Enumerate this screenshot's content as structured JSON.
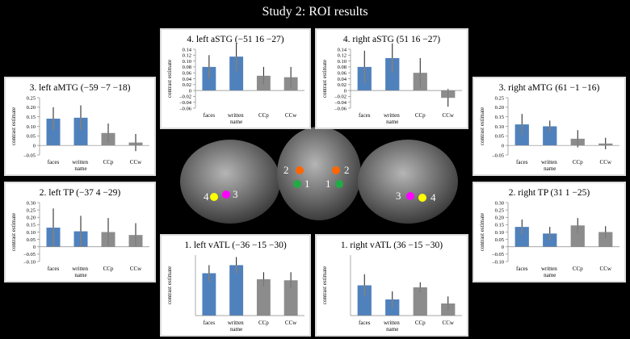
{
  "title": "Study 2: ROI results",
  "brain_labels": [
    "4",
    "3",
    "2",
    "2",
    "1",
    "1",
    "3",
    "4"
  ],
  "chart_data": [
    {
      "type": "bar",
      "title": "4. left aSTG (−51 16 −27)",
      "y_label": "contrast estimate",
      "categories": [
        "faces",
        "written name",
        "CCp",
        "CCw"
      ],
      "values": [
        0.08,
        0.115,
        0.05,
        0.045
      ],
      "errors": [
        0.04,
        0.05,
        0.03,
        0.035
      ],
      "colors": [
        "#4f81bd",
        "#4f81bd",
        "#8c8c8c",
        "#8c8c8c"
      ],
      "ylim": [
        -0.06,
        0.14
      ],
      "yticks": [
        {
          "value": 0.14,
          "label": "0.14"
        },
        {
          "value": 0.12,
          "label": "0.12"
        },
        {
          "value": 0.1,
          "label": "0.10"
        },
        {
          "value": 0.08,
          "label": "0.08"
        },
        {
          "value": 0.06,
          "label": "0.06"
        },
        {
          "value": 0.04,
          "label": "0.04"
        },
        {
          "value": 0.02,
          "label": "0.02"
        },
        0,
        {
          "value": -0.02,
          "label": "–0.02"
        },
        {
          "value": -0.04,
          "label": "–0.04"
        },
        {
          "value": -0.06,
          "label": "–0.06"
        }
      ]
    },
    {
      "type": "bar",
      "title": "4. right aSTG (51 16 −27)",
      "y_label": "contrast estimate",
      "categories": [
        "faces",
        "written name",
        "CCp",
        "CCw"
      ],
      "values": [
        0.08,
        0.11,
        0.06,
        -0.025
      ],
      "errors": [
        0.055,
        0.05,
        0.05,
        0.03
      ],
      "colors": [
        "#4f81bd",
        "#4f81bd",
        "#8c8c8c",
        "#8c8c8c"
      ],
      "ylim": [
        -0.06,
        0.14
      ],
      "yticks": [
        {
          "value": 0.14,
          "label": "0.14"
        },
        {
          "value": 0.12,
          "label": "0.12"
        },
        {
          "value": 0.1,
          "label": "0.10"
        },
        {
          "value": 0.08,
          "label": "0.08"
        },
        {
          "value": 0.06,
          "label": "0.06"
        },
        {
          "value": 0.04,
          "label": "0.04"
        },
        {
          "value": 0.02,
          "label": "0.02"
        },
        0,
        {
          "value": -0.02,
          "label": "–0.02"
        },
        {
          "value": -0.04,
          "label": "–0.04"
        },
        {
          "value": -0.06,
          "label": "–0.06"
        }
      ]
    },
    {
      "type": "bar",
      "title": "3. left aMTG (−59 −7 −18)",
      "y_label": "contrast estimate",
      "categories": [
        "faces",
        "written name",
        "CCp",
        "CCw"
      ],
      "values": [
        0.14,
        0.145,
        0.065,
        0.015
      ],
      "errors": [
        0.06,
        0.065,
        0.05,
        0.045
      ],
      "colors": [
        "#4f81bd",
        "#4f81bd",
        "#8c8c8c",
        "#8c8c8c"
      ],
      "ylim": [
        -0.05,
        0.25
      ],
      "yticks": [
        0.25,
        {
          "value": 0.2,
          "label": "0.20"
        },
        0.15,
        {
          "value": 0.1,
          "label": "0.10"
        },
        0.05,
        0,
        {
          "value": -0.05,
          "label": "–0.05"
        }
      ]
    },
    {
      "type": "bar",
      "title": "3. right aMTG (61 −1 −16)",
      "y_label": "contrast estimate",
      "categories": [
        "faces",
        "written name",
        "CCp",
        "CCw"
      ],
      "values": [
        0.11,
        0.1,
        0.035,
        0.01
      ],
      "errors": [
        0.055,
        0.03,
        0.045,
        0.03
      ],
      "colors": [
        "#4f81bd",
        "#4f81bd",
        "#8c8c8c",
        "#8c8c8c"
      ],
      "ylim": [
        -0.05,
        0.25
      ],
      "yticks": [
        0.25,
        {
          "value": 0.2,
          "label": "0.20"
        },
        0.15,
        {
          "value": 0.1,
          "label": "0.10"
        },
        0.05,
        0,
        {
          "value": -0.05,
          "label": "–0.05"
        }
      ]
    },
    {
      "type": "bar",
      "title": "2. left TP (−37 4 −29)",
      "y_label": "contrast estimate",
      "categories": [
        "faces",
        "written name",
        "CCp",
        "CCw"
      ],
      "values": [
        0.13,
        0.105,
        0.1,
        0.08
      ],
      "errors": [
        0.13,
        0.105,
        0.095,
        0.08
      ],
      "colors": [
        "#4f81bd",
        "#4f81bd",
        "#8c8c8c",
        "#8c8c8c"
      ],
      "ylim": [
        -0.1,
        0.3
      ],
      "yticks": [
        {
          "value": 0.3,
          "label": "0.30"
        },
        0.25,
        {
          "value": 0.2,
          "label": "0.20"
        },
        0.15,
        {
          "value": 0.1,
          "label": "0.10"
        },
        0.05,
        0,
        {
          "value": -0.05,
          "label": "–0.05"
        },
        {
          "value": -0.1,
          "label": "–0.10"
        }
      ]
    },
    {
      "type": "bar",
      "title": "2. right TP (31 1 −25)",
      "y_label": "contrast estimate",
      "categories": [
        "faces",
        "written name",
        "CCp",
        "CCw"
      ],
      "values": [
        0.135,
        0.09,
        0.145,
        0.1
      ],
      "errors": [
        0.05,
        0.045,
        0.05,
        0.04
      ],
      "colors": [
        "#4f81bd",
        "#4f81bd",
        "#8c8c8c",
        "#8c8c8c"
      ],
      "ylim": [
        -0.1,
        0.3
      ],
      "yticks": [
        {
          "value": 0.3,
          "label": "0.30"
        },
        0.25,
        {
          "value": 0.2,
          "label": "0.20"
        },
        0.15,
        {
          "value": 0.1,
          "label": "0.10"
        },
        0.05,
        0,
        {
          "value": -0.05,
          "label": "–0.05"
        },
        {
          "value": -0.1,
          "label": "–0.10"
        }
      ]
    },
    {
      "type": "bar",
      "title": "1. left vATL (−36 −15 −30)",
      "y_label": "contrast estimate",
      "categories": [
        "faces",
        "written name",
        "CCp",
        "CCw"
      ],
      "values": [
        0.21,
        0.25,
        0.18,
        0.175
      ],
      "errors": [
        0.04,
        0.04,
        0.035,
        0.04
      ],
      "colors": [
        "#4f81bd",
        "#4f81bd",
        "#8c8c8c",
        "#8c8c8c"
      ],
      "ylim": [
        0,
        0.3
      ]
    },
    {
      "type": "bar",
      "title": "1. right vATL (36 −15 −30)",
      "y_label": "contrast estimate",
      "categories": [
        "faces",
        "written name",
        "CCp",
        "CCw"
      ],
      "values": [
        0.15,
        0.08,
        0.14,
        0.06
      ],
      "errors": [
        0.055,
        0.04,
        0.025,
        0.035
      ],
      "colors": [
        "#4f81bd",
        "#4f81bd",
        "#8c8c8c",
        "#8c8c8c"
      ],
      "ylim": [
        0,
        0.3
      ]
    }
  ]
}
